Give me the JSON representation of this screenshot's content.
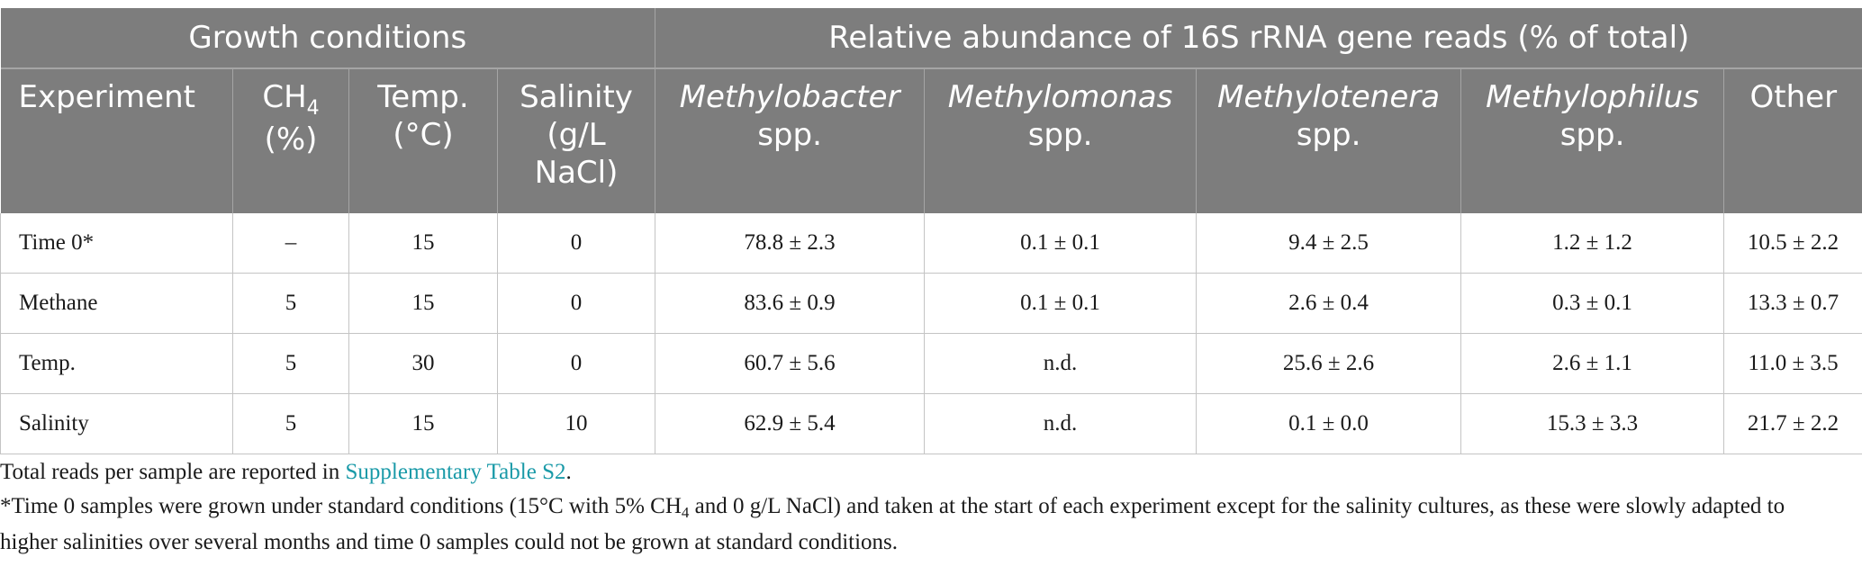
{
  "header": {
    "group_growth": "Growth conditions",
    "group_abundance": "Relative abundance of 16S rRNA gene reads (% of total)",
    "col_experiment": "Experiment",
    "col_ch4_main": "CH",
    "col_ch4_sub": "4",
    "col_ch4_unit": "(%)",
    "col_temp_1": "Temp.",
    "col_temp_2": "(°C)",
    "col_salinity_1": "Salinity",
    "col_salinity_2": "(g/L",
    "col_salinity_3": "NaCl)",
    "col_methylobacter": "Methylobacter",
    "col_methylomonas": "Methylomonas",
    "col_methylotenera": "Methylotenera",
    "col_methylophilus": "Methylophilus",
    "spp": "spp.",
    "col_other": "Other"
  },
  "rows": [
    {
      "experiment": "Time 0*",
      "ch4": "–",
      "temp": "15",
      "salinity": "0",
      "methylobacter": "78.8 ± 2.3",
      "methylomonas": "0.1 ± 0.1",
      "methylotenera": "9.4 ± 2.5",
      "methylophilus": "1.2 ± 1.2",
      "other": "10.5 ± 2.2"
    },
    {
      "experiment": "Methane",
      "ch4": "5",
      "temp": "15",
      "salinity": "0",
      "methylobacter": "83.6 ± 0.9",
      "methylomonas": "0.1 ± 0.1",
      "methylotenera": "2.6 ± 0.4",
      "methylophilus": "0.3 ± 0.1",
      "other": "13.3 ± 0.7"
    },
    {
      "experiment": "Temp.",
      "ch4": "5",
      "temp": "30",
      "salinity": "0",
      "methylobacter": "60.7 ± 5.6",
      "methylomonas": "n.d.",
      "methylotenera": "25.6 ± 2.6",
      "methylophilus": "2.6 ± 1.1",
      "other": "11.0 ± 3.5"
    },
    {
      "experiment": "Salinity",
      "ch4": "5",
      "temp": "15",
      "salinity": "10",
      "methylobacter": "62.9 ± 5.4",
      "methylomonas": "n.d.",
      "methylotenera": "0.1 ± 0.0",
      "methylophilus": "15.3 ± 3.3",
      "other": "21.7 ± 2.2"
    }
  ],
  "notes": {
    "line1_before": "Total reads per sample are reported in ",
    "line1_link": "Supplementary Table S2",
    "line1_after": ".",
    "line2_before": "*Time 0 samples were grown under standard conditions (15°C with 5% CH",
    "line2_sub": "4",
    "line2_after": " and 0 g/L NaCl) and taken at the start of each experiment except for the salinity cultures, as these were slowly adapted to higher salinities over several months and time 0 samples could not be grown at standard conditions."
  },
  "colors": {
    "header_bg": "#7d7d7d",
    "header_text": "#ffffff",
    "link": "#1a9aa8"
  }
}
